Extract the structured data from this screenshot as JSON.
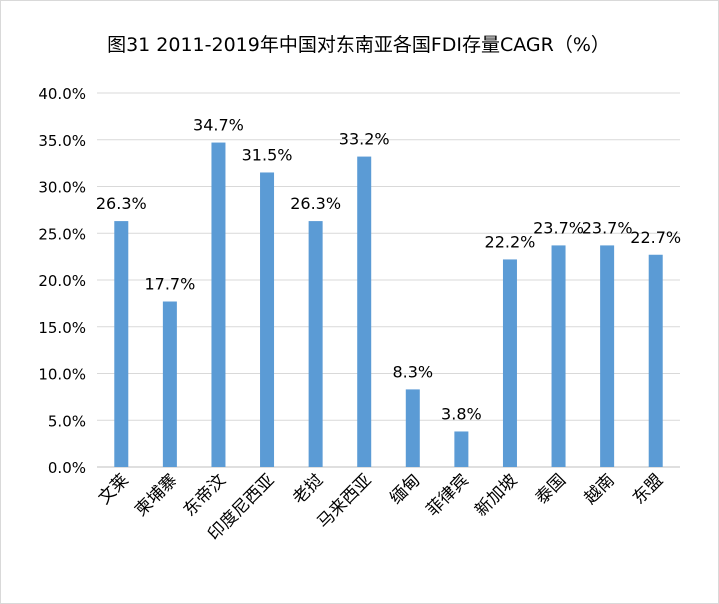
{
  "chart_data": {
    "type": "bar",
    "title": "图31 2011-2019年中国对东南亚各国FDI存量CAGR（%）",
    "categories": [
      "文莱",
      "柬埔寨",
      "东帝汶",
      "印度尼西亚",
      "老挝",
      "马来西亚",
      "缅甸",
      "菲律宾",
      "新加坡",
      "泰国",
      "越南",
      "东盟"
    ],
    "values": [
      26.3,
      17.7,
      34.7,
      31.5,
      26.3,
      33.2,
      8.3,
      3.8,
      22.2,
      23.7,
      23.7,
      22.7
    ],
    "data_labels": [
      "26.3%",
      "17.7%",
      "34.7%",
      "31.5%",
      "26.3%",
      "33.2%",
      "8.3%",
      "3.8%",
      "22.2%",
      "23.7%",
      "23.7%",
      "22.7%"
    ],
    "y_ticks": [
      "0.0%",
      "5.0%",
      "10.0%",
      "15.0%",
      "20.0%",
      "25.0%",
      "30.0%",
      "35.0%",
      "40.0%"
    ],
    "ylim": [
      0,
      40
    ],
    "xlabel": "",
    "ylabel": "",
    "grid": true,
    "bar_color": "#5B9BD5",
    "grid_color": "#d9d9d9"
  }
}
